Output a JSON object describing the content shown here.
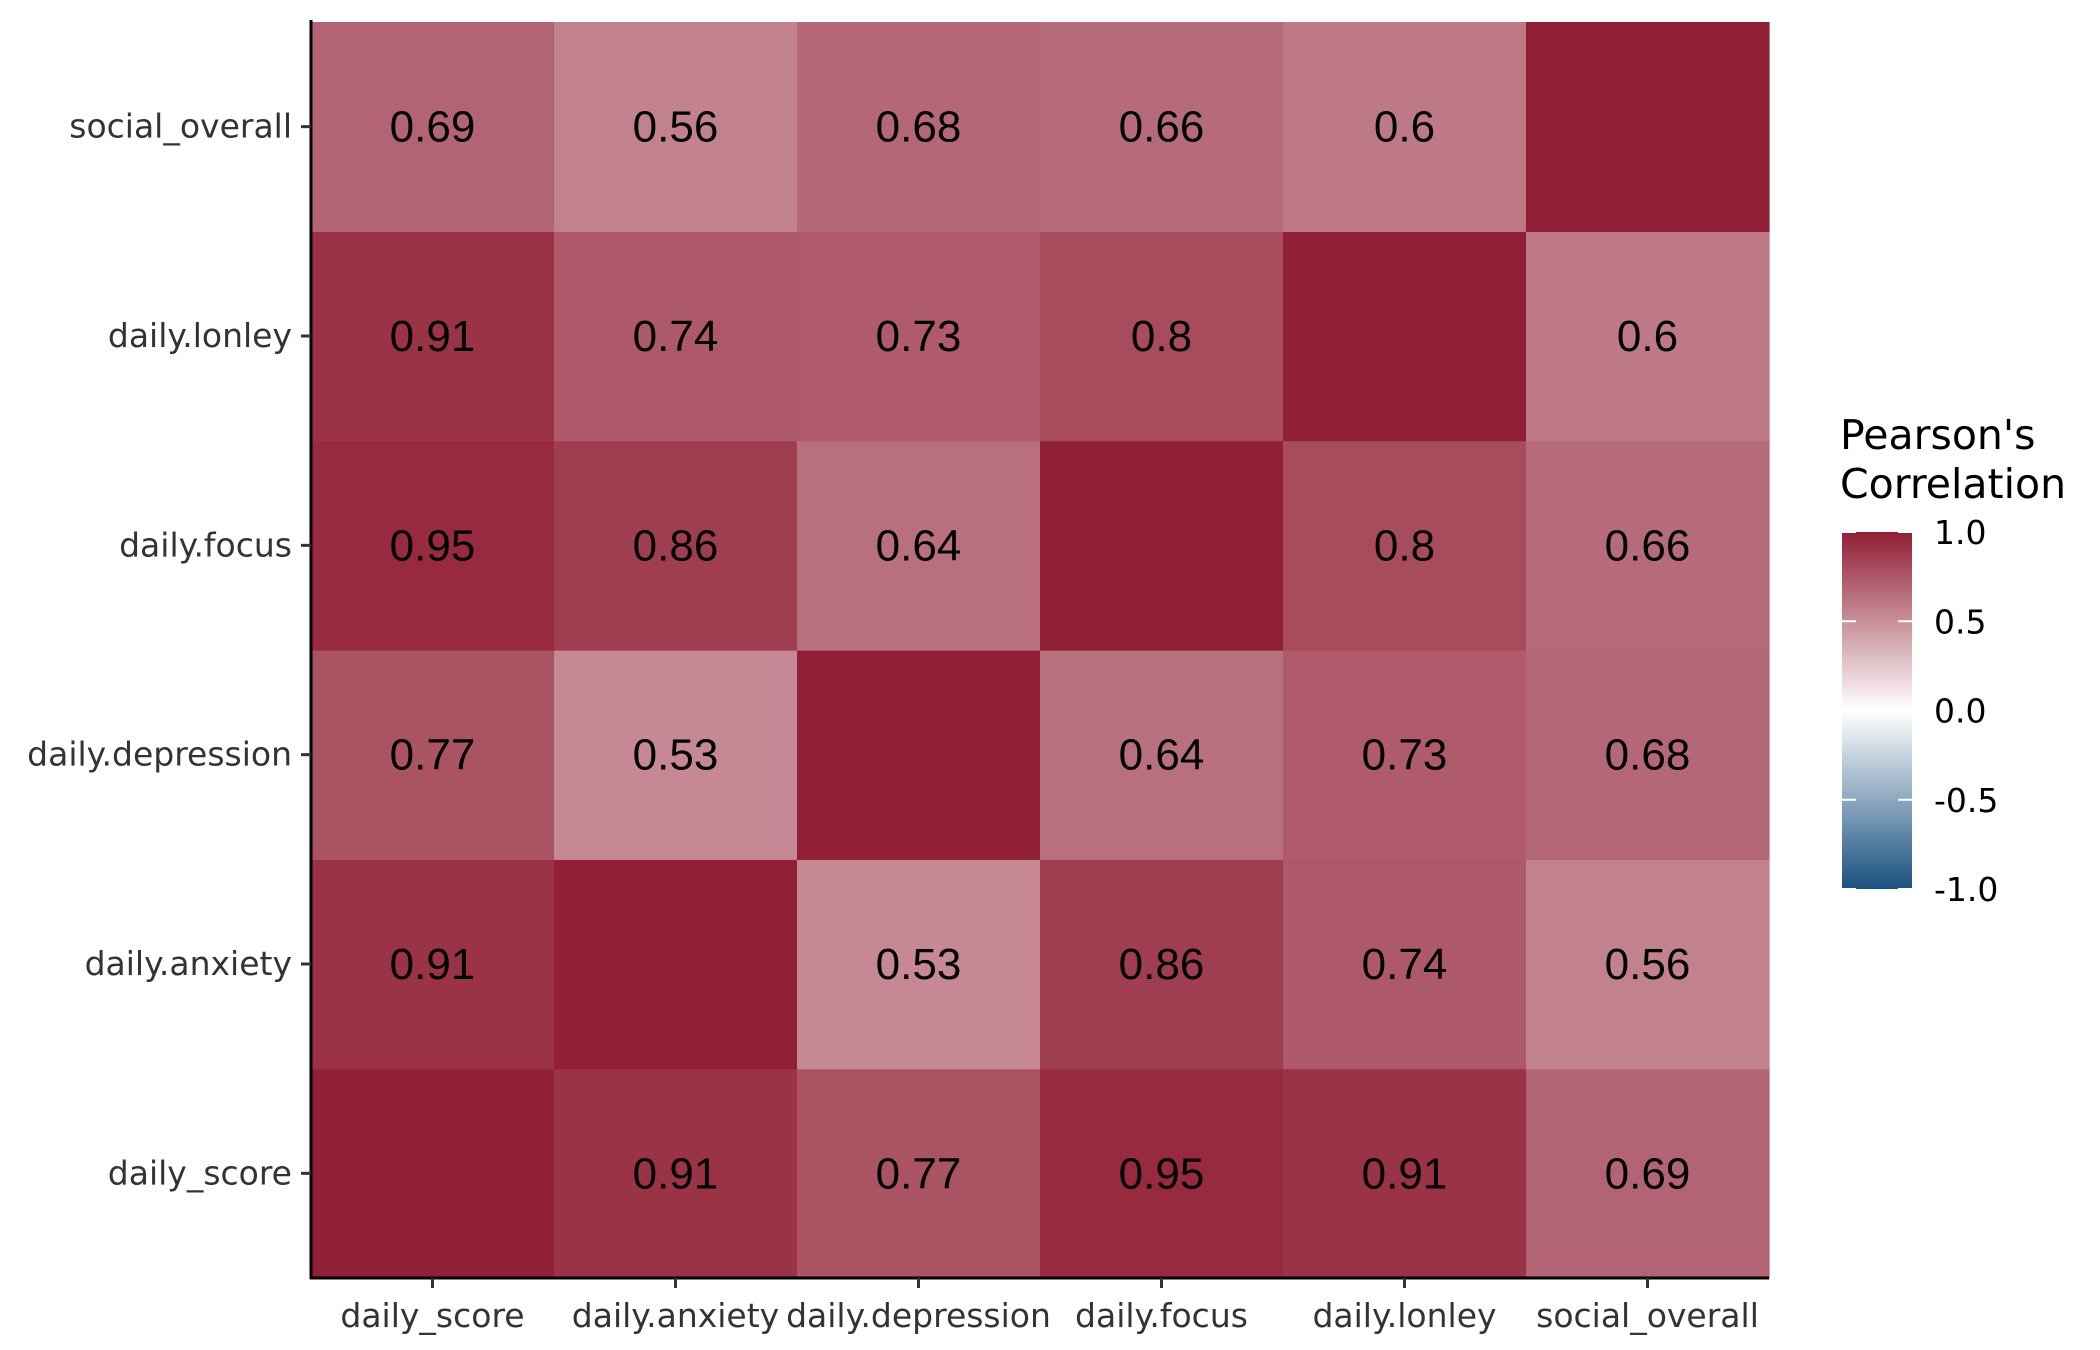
{
  "chart_data": {
    "type": "heatmap",
    "title": "",
    "xlabel": "",
    "ylabel": "",
    "x_categories": [
      "daily_score",
      "daily.anxiety",
      "daily.depression",
      "daily.focus",
      "daily.lonley",
      "social_overall"
    ],
    "y_categories": [
      "daily_score",
      "daily.anxiety",
      "daily.depression",
      "daily.focus",
      "daily.lonley",
      "social_overall"
    ],
    "matrix": [
      [
        1.0,
        0.91,
        0.77,
        0.95,
        0.91,
        0.69
      ],
      [
        0.91,
        1.0,
        0.53,
        0.86,
        0.74,
        0.56
      ],
      [
        0.77,
        0.53,
        1.0,
        0.64,
        0.73,
        0.68
      ],
      [
        0.95,
        0.86,
        0.64,
        1.0,
        0.8,
        0.66
      ],
      [
        0.91,
        0.74,
        0.73,
        0.8,
        1.0,
        0.6
      ],
      [
        0.69,
        0.56,
        0.68,
        0.66,
        0.6,
        1.0
      ]
    ],
    "cell_labels": [
      [
        "",
        "0.91",
        "0.77",
        "0.95",
        "0.91",
        "0.69"
      ],
      [
        "0.91",
        "",
        "0.53",
        "0.86",
        "0.74",
        "0.56"
      ],
      [
        "0.77",
        "0.53",
        "",
        "0.64",
        "0.73",
        "0.68"
      ],
      [
        "0.95",
        "0.86",
        "0.64",
        "",
        "0.8",
        "0.66"
      ],
      [
        "0.91",
        "0.74",
        "0.73",
        "0.8",
        "",
        "0.6"
      ],
      [
        "0.69",
        "0.56",
        "0.68",
        "0.66",
        "0.6",
        ""
      ]
    ],
    "legend": {
      "title_lines": [
        "Pearson's",
        "Correlation"
      ],
      "ticks": [
        1.0,
        0.5,
        0.0,
        -0.5,
        -1.0
      ],
      "tick_labels": [
        "1.0",
        "0.5",
        "0.0",
        "-0.5",
        "-1.0"
      ],
      "range": [
        -1,
        1
      ],
      "placement": "right"
    },
    "color_scale": {
      "low": "#1a5180",
      "mid": "#ffffff",
      "high": "#911f35"
    },
    "grid": false
  }
}
